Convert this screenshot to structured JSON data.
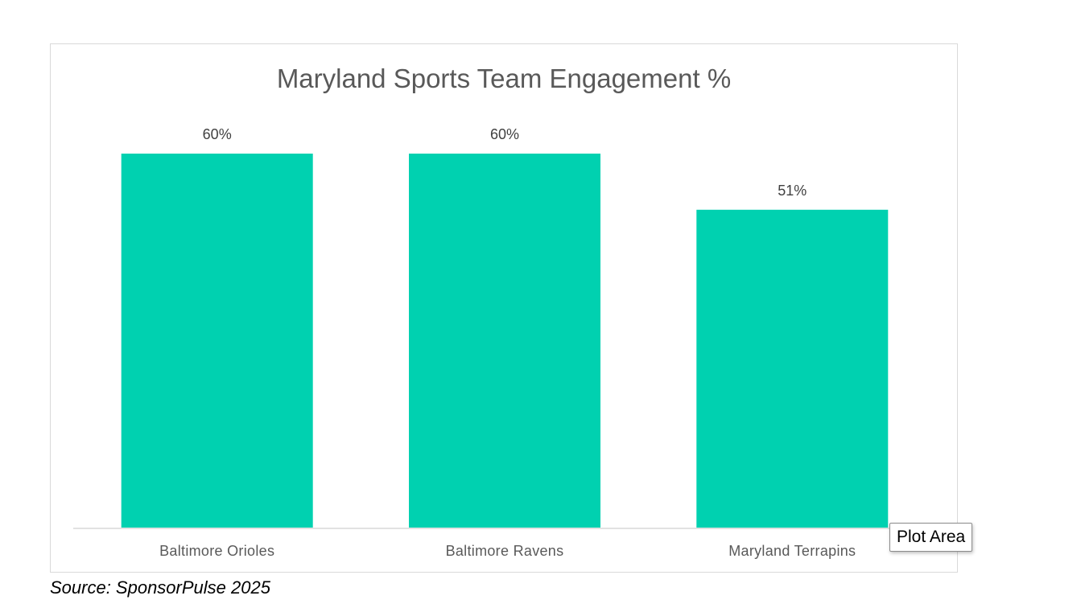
{
  "chart_data": {
    "type": "bar",
    "title": "Maryland Sports Team Engagement %",
    "categories": [
      "Baltimore Orioles",
      "Baltimore Ravens",
      "Maryland Terrapins"
    ],
    "values": [
      60,
      60,
      51
    ],
    "data_labels": [
      "60%",
      "60%",
      "51%"
    ],
    "ylim": [
      0,
      60
    ],
    "bar_color": "#00d1b0",
    "grid": false,
    "legend": "none"
  },
  "tooltip": {
    "label": "Plot Area"
  },
  "source": {
    "text": "Source: SponsorPulse 2025"
  }
}
